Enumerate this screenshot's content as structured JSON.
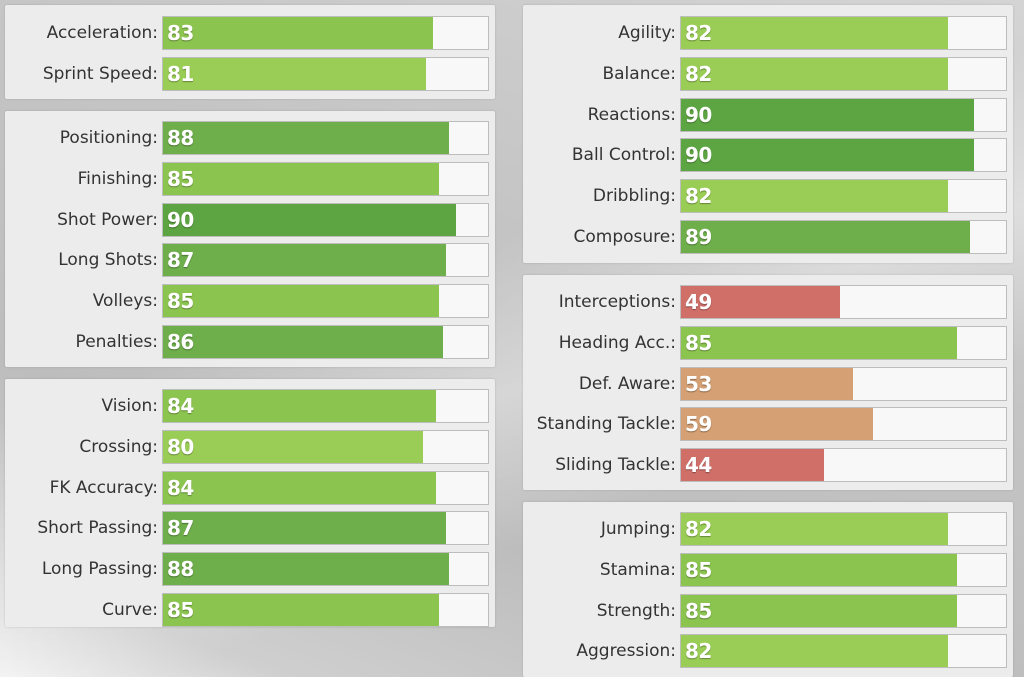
{
  "colors": {
    "elite": "#5da542",
    "high": "#6eae4b",
    "good": "#8cc450",
    "mid_good": "#9acd55",
    "average": "#d4a074",
    "low": "#cf6f68"
  },
  "panels": [
    {
      "id": "pace",
      "stats": [
        {
          "label": "Acceleration:",
          "value": 83
        },
        {
          "label": "Sprint Speed:",
          "value": 81
        }
      ]
    },
    {
      "id": "shooting",
      "stats": [
        {
          "label": "Positioning:",
          "value": 88
        },
        {
          "label": "Finishing:",
          "value": 85
        },
        {
          "label": "Shot Power:",
          "value": 90
        },
        {
          "label": "Long Shots:",
          "value": 87
        },
        {
          "label": "Volleys:",
          "value": 85
        },
        {
          "label": "Penalties:",
          "value": 86
        }
      ]
    },
    {
      "id": "passing",
      "stats": [
        {
          "label": "Vision:",
          "value": 84
        },
        {
          "label": "Crossing:",
          "value": 80
        },
        {
          "label": "FK Accuracy:",
          "value": 84
        },
        {
          "label": "Short Passing:",
          "value": 87
        },
        {
          "label": "Long Passing:",
          "value": 88
        },
        {
          "label": "Curve:",
          "value": 85
        }
      ]
    },
    {
      "id": "dribbling",
      "stats": [
        {
          "label": "Agility:",
          "value": 82
        },
        {
          "label": "Balance:",
          "value": 82
        },
        {
          "label": "Reactions:",
          "value": 90
        },
        {
          "label": "Ball Control:",
          "value": 90
        },
        {
          "label": "Dribbling:",
          "value": 82
        },
        {
          "label": "Composure:",
          "value": 89
        }
      ]
    },
    {
      "id": "defending",
      "stats": [
        {
          "label": "Interceptions:",
          "value": 49
        },
        {
          "label": "Heading Acc.:",
          "value": 85
        },
        {
          "label": "Def. Aware:",
          "value": 53
        },
        {
          "label": "Standing Tackle:",
          "value": 59
        },
        {
          "label": "Sliding Tackle:",
          "value": 44
        }
      ]
    },
    {
      "id": "physical",
      "stats": [
        {
          "label": "Jumping:",
          "value": 82
        },
        {
          "label": "Stamina:",
          "value": 85
        },
        {
          "label": "Strength:",
          "value": 85
        },
        {
          "label": "Aggression:",
          "value": 82
        }
      ]
    }
  ]
}
